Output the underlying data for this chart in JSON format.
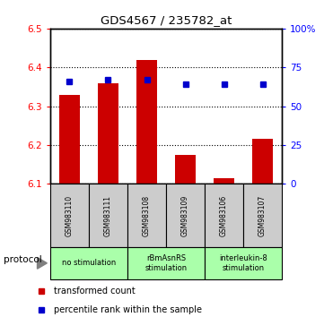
{
  "title": "GDS4567 / 235782_at",
  "samples": [
    "GSM983110",
    "GSM983111",
    "GSM983108",
    "GSM983109",
    "GSM983106",
    "GSM983107"
  ],
  "transformed_counts": [
    6.33,
    6.36,
    6.42,
    6.175,
    6.115,
    6.215
  ],
  "percentile_ranks": [
    66,
    67,
    67,
    64,
    64,
    64
  ],
  "ylim_left": [
    6.1,
    6.5
  ],
  "ylim_right": [
    0,
    100
  ],
  "bar_color": "#cc0000",
  "dot_color": "#0000cc",
  "bar_bottom": 6.1,
  "right_ticks": [
    0,
    25,
    50,
    75,
    100
  ],
  "right_tick_labels": [
    "0",
    "25",
    "50",
    "75",
    "100%"
  ],
  "left_ticks": [
    6.1,
    6.2,
    6.3,
    6.4,
    6.5
  ],
  "protocol_groups": [
    {
      "label": "no stimulation",
      "start": 0,
      "end": 2,
      "color": "#aaffaa"
    },
    {
      "label": "rBmAsnRS\nstimulation",
      "start": 2,
      "end": 4,
      "color": "#aaffaa"
    },
    {
      "label": "interleukin-8\nstimulation",
      "start": 4,
      "end": 6,
      "color": "#aaffaa"
    }
  ],
  "protocol_label": "protocol",
  "legend_items": [
    {
      "color": "#cc0000",
      "label": "transformed count"
    },
    {
      "color": "#0000cc",
      "label": "percentile rank within the sample"
    }
  ],
  "background_color": "#ffffff",
  "plot_bg_color": "#ffffff",
  "sample_bg_color": "#cccccc"
}
